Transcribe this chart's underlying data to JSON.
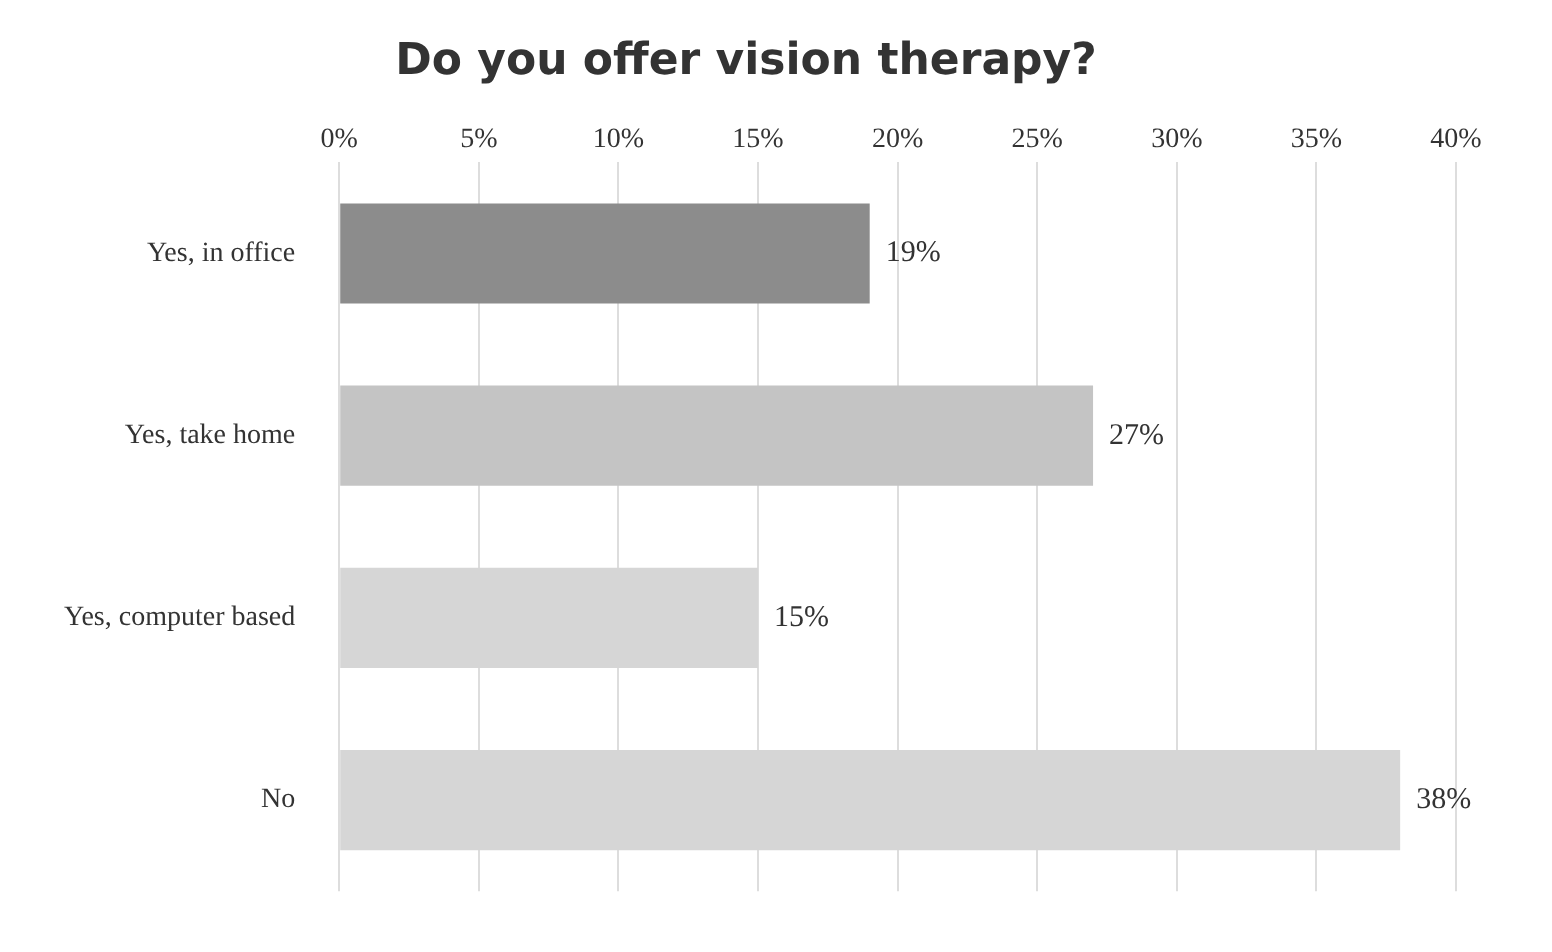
{
  "chart_data": {
    "type": "bar",
    "orientation": "horizontal",
    "title": "Do you offer vision therapy?",
    "categories": [
      "Yes, in office",
      "Yes, take home",
      "Yes, computer based",
      "No"
    ],
    "values": [
      19,
      27,
      15,
      38
    ],
    "colors": [
      "#8c8c8c",
      "#c4c4c4",
      "#d6d6d6",
      "#d6d6d6"
    ],
    "value_labels": [
      "19%",
      "27%",
      "15%",
      "38%"
    ],
    "xlim": [
      0,
      40
    ],
    "xticks": [
      {
        "value": 0,
        "label": "0%"
      },
      {
        "value": 5,
        "label": "5%"
      },
      {
        "value": 10,
        "label": "10%"
      },
      {
        "value": 15,
        "label": "15%"
      },
      {
        "value": 20,
        "label": "20%"
      },
      {
        "value": 25,
        "label": "25%"
      },
      {
        "value": 30,
        "label": "30%"
      },
      {
        "value": 35,
        "label": "35%"
      },
      {
        "value": 40,
        "label": "40%"
      }
    ],
    "grid": "x",
    "legend": false
  }
}
